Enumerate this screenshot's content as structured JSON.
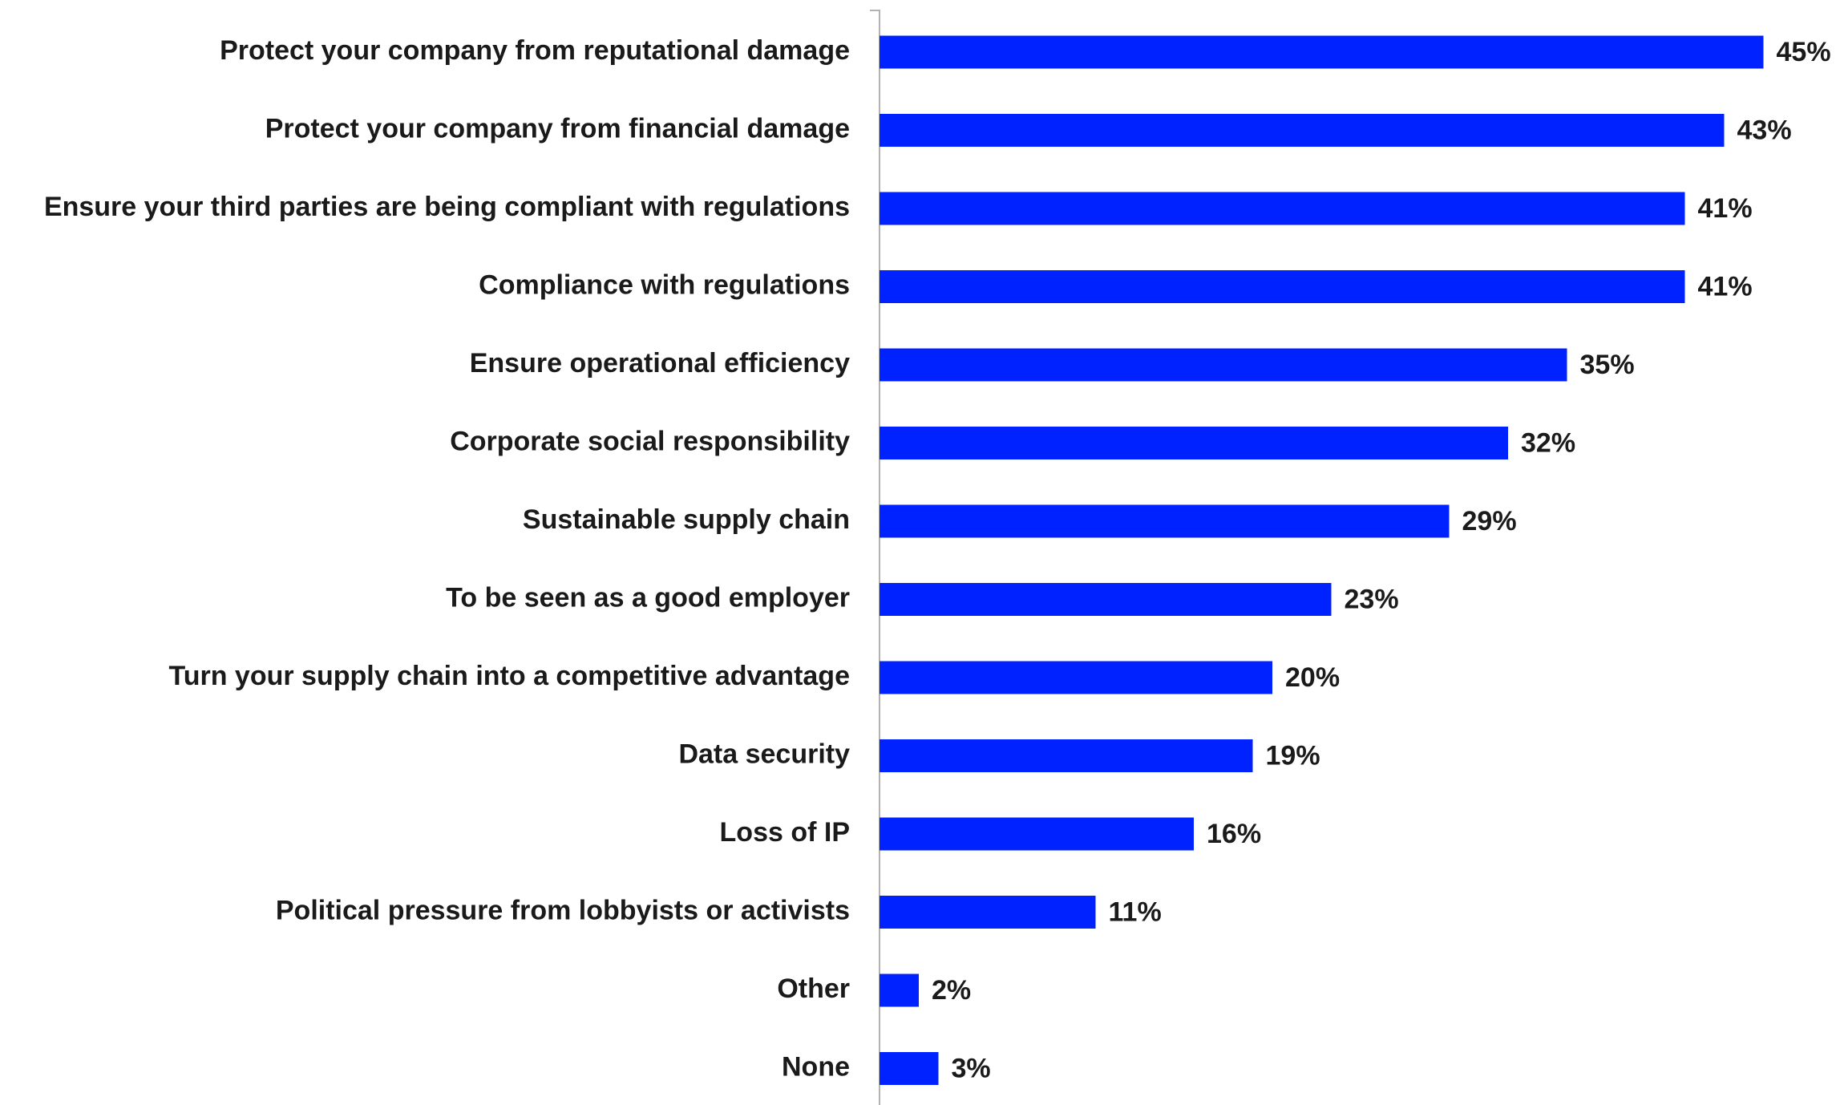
{
  "chart_data": {
    "type": "bar",
    "orientation": "horizontal",
    "categories": [
      "Protect your company from reputational damage",
      "Protect your company from financial damage",
      "Ensure your third parties are being compliant with regulations",
      "Compliance with regulations",
      "Ensure operational efficiency",
      "Corporate social responsibility",
      "Sustainable supply chain",
      "To be seen as a good employer",
      "Turn your supply chain into a competitive advantage",
      "Data security",
      "Loss of IP",
      "Political pressure from lobbyists or activists",
      "Other",
      "None"
    ],
    "values": [
      45,
      43,
      41,
      41,
      35,
      32,
      29,
      23,
      20,
      19,
      16,
      11,
      2,
      3
    ],
    "data_labels": [
      "45%",
      "43%",
      "41%",
      "41%",
      "35%",
      "32%",
      "29%",
      "23%",
      "20%",
      "19%",
      "16%",
      "11%",
      "2%",
      "3%"
    ],
    "unit": "%",
    "xlim": [
      0,
      45
    ],
    "grid": false,
    "legend": "none",
    "bar_color": "#0022ff"
  }
}
